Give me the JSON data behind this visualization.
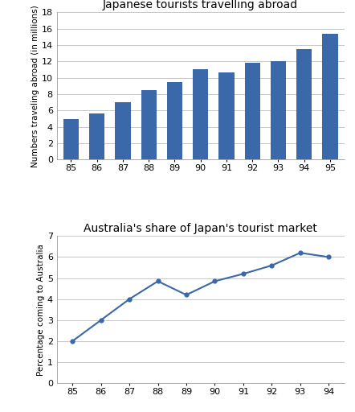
{
  "bar_years": [
    "85",
    "86",
    "87",
    "88",
    "89",
    "90",
    "91",
    "92",
    "93",
    "94",
    "95"
  ],
  "bar_values": [
    4.9,
    5.6,
    7.0,
    8.5,
    9.5,
    11.0,
    10.7,
    11.8,
    12.0,
    13.5,
    15.4
  ],
  "bar_color": "#3A68A8",
  "bar_title": "Japanese tourists travelling abroad",
  "bar_ylabel": "Numbers traveling abroad (in millions)",
  "bar_ylim": [
    0,
    18
  ],
  "bar_yticks": [
    0,
    2,
    4,
    6,
    8,
    10,
    12,
    14,
    16,
    18
  ],
  "line_years": [
    "85",
    "86",
    "87",
    "88",
    "89",
    "90",
    "91",
    "92",
    "93",
    "94"
  ],
  "line_values": [
    2.0,
    3.0,
    4.0,
    4.85,
    4.2,
    4.85,
    5.2,
    5.6,
    6.2,
    6.0
  ],
  "line_color": "#3A68A8",
  "line_title": "Australia's share of Japan's tourist market",
  "line_ylabel": "Percentage coming to Australia",
  "line_ylim": [
    0,
    7
  ],
  "line_yticks": [
    0,
    1,
    2,
    3,
    4,
    5,
    6,
    7
  ],
  "bg_color": "#FFFFFF",
  "grid_color": "#C8C8C8",
  "title_fontsize": 10,
  "label_fontsize": 7.5,
  "tick_fontsize": 8
}
